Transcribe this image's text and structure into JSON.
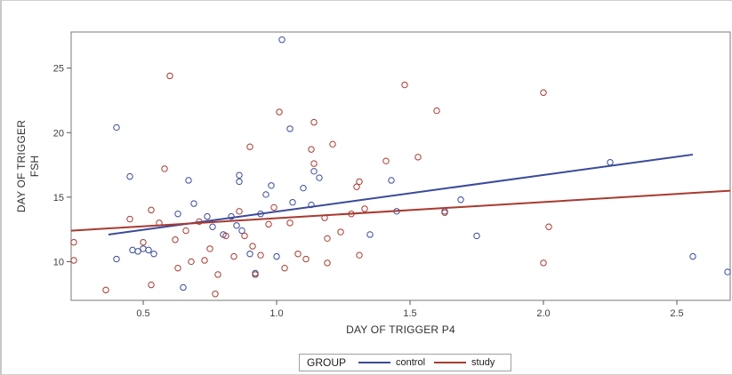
{
  "chart_data": {
    "type": "scatter",
    "title": "",
    "xlabel": "DAY OF TRIGGER P4",
    "ylabel_lines": [
      "DAY OF TRIGGER",
      "FSH"
    ],
    "xlim": [
      0.23,
      2.7
    ],
    "ylim": [
      7.0,
      27.8
    ],
    "x_ticks": [
      {
        "value": 0.5,
        "label": "0.5"
      },
      {
        "value": 1.0,
        "label": "1.0"
      },
      {
        "value": 1.5,
        "label": "1.5"
      },
      {
        "value": 2.0,
        "label": "2.0"
      },
      {
        "value": 2.5,
        "label": "2.5"
      }
    ],
    "y_ticks": [
      {
        "value": 10,
        "label": "10"
      },
      {
        "value": 15,
        "label": "15"
      },
      {
        "value": 20,
        "label": "20"
      },
      {
        "value": 25,
        "label": "25"
      }
    ],
    "grid": false,
    "legend": {
      "title": "GROUP",
      "placement": "bottom-center"
    },
    "series": [
      {
        "name": "control",
        "color": "#3a4a9a",
        "fit_line": [
          [
            0.37,
            12.1
          ],
          [
            2.56,
            18.3
          ]
        ],
        "points": [
          [
            0.4,
            20.4
          ],
          [
            0.4,
            10.2
          ],
          [
            0.45,
            16.6
          ],
          [
            0.46,
            10.9
          ],
          [
            0.48,
            10.8
          ],
          [
            0.5,
            11.0
          ],
          [
            0.52,
            10.9
          ],
          [
            0.54,
            10.6
          ],
          [
            0.63,
            13.7
          ],
          [
            0.65,
            8.0
          ],
          [
            0.67,
            16.3
          ],
          [
            0.69,
            14.5
          ],
          [
            0.74,
            13.5
          ],
          [
            0.76,
            12.7
          ],
          [
            0.8,
            12.1
          ],
          [
            0.83,
            13.5
          ],
          [
            0.85,
            12.8
          ],
          [
            0.86,
            16.7
          ],
          [
            0.86,
            16.2
          ],
          [
            0.87,
            12.4
          ],
          [
            0.9,
            10.6
          ],
          [
            0.92,
            9.1
          ],
          [
            0.94,
            13.7
          ],
          [
            0.96,
            15.2
          ],
          [
            0.98,
            15.9
          ],
          [
            1.0,
            10.4
          ],
          [
            1.02,
            27.2
          ],
          [
            1.05,
            20.3
          ],
          [
            1.06,
            14.6
          ],
          [
            1.1,
            15.7
          ],
          [
            1.13,
            14.4
          ],
          [
            1.14,
            17.0
          ],
          [
            1.16,
            16.5
          ],
          [
            1.35,
            12.1
          ],
          [
            1.43,
            16.3
          ],
          [
            1.45,
            13.9
          ],
          [
            1.63,
            13.9
          ],
          [
            1.69,
            14.8
          ],
          [
            1.75,
            12.0
          ],
          [
            2.25,
            17.7
          ],
          [
            2.56,
            10.4
          ],
          [
            2.69,
            9.2
          ]
        ]
      },
      {
        "name": "study",
        "color": "#a83a30",
        "fit_line": [
          [
            0.23,
            12.4
          ],
          [
            2.7,
            15.5
          ]
        ],
        "points": [
          [
            0.24,
            11.5
          ],
          [
            0.24,
            10.1
          ],
          [
            0.36,
            7.8
          ],
          [
            0.45,
            13.3
          ],
          [
            0.5,
            11.5
          ],
          [
            0.53,
            14.0
          ],
          [
            0.53,
            8.2
          ],
          [
            0.56,
            13.0
          ],
          [
            0.58,
            17.2
          ],
          [
            0.6,
            24.4
          ],
          [
            0.62,
            11.7
          ],
          [
            0.63,
            9.5
          ],
          [
            0.66,
            12.4
          ],
          [
            0.68,
            10.0
          ],
          [
            0.71,
            13.1
          ],
          [
            0.73,
            10.1
          ],
          [
            0.75,
            11.0
          ],
          [
            0.77,
            7.5
          ],
          [
            0.78,
            9.0
          ],
          [
            0.81,
            12.0
          ],
          [
            0.84,
            10.4
          ],
          [
            0.86,
            13.9
          ],
          [
            0.88,
            12.0
          ],
          [
            0.9,
            18.9
          ],
          [
            0.91,
            11.2
          ],
          [
            0.92,
            9.0
          ],
          [
            0.94,
            10.5
          ],
          [
            0.97,
            12.9
          ],
          [
            0.99,
            14.2
          ],
          [
            1.01,
            21.6
          ],
          [
            1.03,
            9.5
          ],
          [
            1.05,
            13.0
          ],
          [
            1.08,
            10.6
          ],
          [
            1.11,
            10.2
          ],
          [
            1.13,
            18.7
          ],
          [
            1.14,
            17.6
          ],
          [
            1.14,
            20.8
          ],
          [
            1.18,
            13.4
          ],
          [
            1.19,
            11.8
          ],
          [
            1.19,
            9.9
          ],
          [
            1.21,
            19.1
          ],
          [
            1.24,
            12.3
          ],
          [
            1.28,
            13.7
          ],
          [
            1.3,
            15.8
          ],
          [
            1.31,
            16.2
          ],
          [
            1.31,
            10.5
          ],
          [
            1.33,
            14.1
          ],
          [
            1.41,
            17.8
          ],
          [
            1.48,
            23.7
          ],
          [
            1.53,
            18.1
          ],
          [
            1.6,
            21.7
          ],
          [
            1.63,
            13.8
          ],
          [
            2.0,
            23.1
          ],
          [
            2.0,
            9.9
          ],
          [
            2.02,
            12.7
          ]
        ]
      }
    ]
  }
}
